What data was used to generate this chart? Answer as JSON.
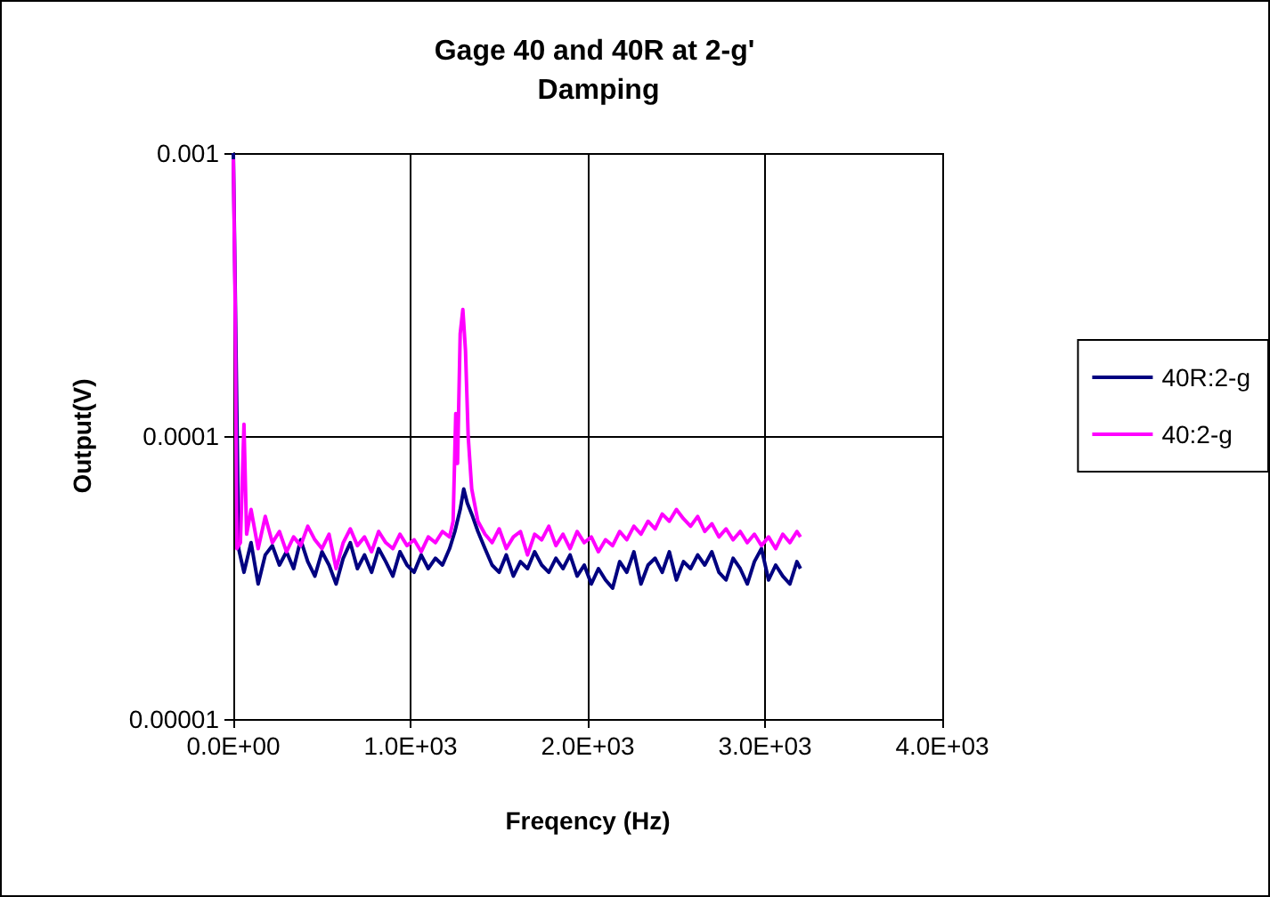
{
  "chart_data": {
    "type": "line",
    "title": "Gage 40 and 40R at 2-g' Damping",
    "xlabel": "Freqency (Hz)",
    "ylabel": "Output(V)",
    "log": "y",
    "grid": true,
    "legend": "right",
    "marker": "none",
    "line_style": "solid",
    "xlim": [
      0,
      4000
    ],
    "xticks": [
      {
        "value": 0,
        "label": "0.0E+00"
      },
      {
        "value": 1000,
        "label": "1.0E+03"
      },
      {
        "value": 2000,
        "label": "2.0E+03"
      },
      {
        "value": 3000,
        "label": "3.0E+03"
      },
      {
        "value": 4000,
        "label": "4.0E+03"
      }
    ],
    "ylim": [
      1e-05,
      0.001
    ],
    "yticks": [
      {
        "value": 1e-05,
        "label": "0.00001"
      },
      {
        "value": 0.0001,
        "label": "0.0001"
      },
      {
        "value": 0.001,
        "label": "0.001"
      }
    ],
    "series": [
      {
        "name": "40R:2-g",
        "color": "#000080",
        "x": [
          0,
          15,
          30,
          60,
          100,
          140,
          180,
          220,
          260,
          300,
          340,
          380,
          420,
          460,
          500,
          540,
          580,
          620,
          660,
          700,
          740,
          780,
          820,
          860,
          900,
          940,
          980,
          1020,
          1060,
          1100,
          1140,
          1180,
          1220,
          1250,
          1280,
          1300,
          1320,
          1350,
          1380,
          1420,
          1460,
          1500,
          1540,
          1580,
          1620,
          1660,
          1700,
          1740,
          1780,
          1820,
          1860,
          1900,
          1940,
          1980,
          2020,
          2060,
          2100,
          2140,
          2180,
          2220,
          2260,
          2300,
          2340,
          2380,
          2420,
          2460,
          2500,
          2540,
          2580,
          2620,
          2660,
          2700,
          2740,
          2780,
          2820,
          2860,
          2900,
          2940,
          2980,
          3020,
          3060,
          3100,
          3140,
          3180,
          3200
        ],
        "values": [
          0.001,
          0.0002,
          4e-05,
          3.3e-05,
          4.2e-05,
          3e-05,
          3.8e-05,
          4.1e-05,
          3.5e-05,
          3.9e-05,
          3.4e-05,
          4.3e-05,
          3.6e-05,
          3.2e-05,
          3.9e-05,
          3.5e-05,
          3e-05,
          3.7e-05,
          4.2e-05,
          3.4e-05,
          3.8e-05,
          3.3e-05,
          4e-05,
          3.6e-05,
          3.2e-05,
          3.9e-05,
          3.5e-05,
          3.3e-05,
          3.8e-05,
          3.4e-05,
          3.7e-05,
          3.5e-05,
          4e-05,
          4.6e-05,
          5.5e-05,
          6.5e-05,
          5.8e-05,
          5.2e-05,
          4.6e-05,
          4e-05,
          3.5e-05,
          3.3e-05,
          3.8e-05,
          3.2e-05,
          3.6e-05,
          3.4e-05,
          3.9e-05,
          3.5e-05,
          3.3e-05,
          3.7e-05,
          3.4e-05,
          3.8e-05,
          3.2e-05,
          3.5e-05,
          3e-05,
          3.4e-05,
          3.1e-05,
          2.9e-05,
          3.6e-05,
          3.3e-05,
          3.9e-05,
          3e-05,
          3.5e-05,
          3.7e-05,
          3.3e-05,
          3.9e-05,
          3.1e-05,
          3.6e-05,
          3.4e-05,
          3.8e-05,
          3.5e-05,
          3.9e-05,
          3.3e-05,
          3.1e-05,
          3.7e-05,
          3.4e-05,
          3e-05,
          3.6e-05,
          4e-05,
          3.1e-05,
          3.5e-05,
          3.2e-05,
          3e-05,
          3.6e-05,
          3.4e-05
        ]
      },
      {
        "name": "40:2-g",
        "color": "#ff00ff",
        "x": [
          0,
          10,
          20,
          40,
          60,
          75,
          100,
          140,
          180,
          220,
          260,
          300,
          340,
          380,
          420,
          460,
          500,
          540,
          580,
          620,
          660,
          700,
          740,
          780,
          820,
          860,
          900,
          940,
          980,
          1020,
          1060,
          1100,
          1140,
          1180,
          1220,
          1240,
          1255,
          1265,
          1280,
          1295,
          1310,
          1325,
          1345,
          1380,
          1420,
          1460,
          1500,
          1540,
          1580,
          1620,
          1660,
          1700,
          1740,
          1780,
          1820,
          1860,
          1900,
          1940,
          1980,
          2020,
          2060,
          2100,
          2140,
          2180,
          2220,
          2260,
          2300,
          2340,
          2380,
          2420,
          2460,
          2500,
          2540,
          2580,
          2620,
          2660,
          2700,
          2740,
          2780,
          2820,
          2860,
          2900,
          2940,
          2980,
          3020,
          3060,
          3100,
          3140,
          3180,
          3200
        ],
        "values": [
          0.00095,
          0.0003,
          4e-05,
          4.2e-05,
          0.00011,
          4.5e-05,
          5.5e-05,
          4e-05,
          5.2e-05,
          4.2e-05,
          4.6e-05,
          3.9e-05,
          4.4e-05,
          4.1e-05,
          4.8e-05,
          4.3e-05,
          4e-05,
          4.5e-05,
          3.4e-05,
          4.2e-05,
          4.7e-05,
          4.1e-05,
          4.4e-05,
          3.9e-05,
          4.6e-05,
          4.2e-05,
          4e-05,
          4.5e-05,
          4.1e-05,
          4.3e-05,
          3.9e-05,
          4.4e-05,
          4.2e-05,
          4.6e-05,
          4.4e-05,
          5e-05,
          0.00012,
          8e-05,
          0.00023,
          0.00028,
          0.0002,
          0.0001,
          6.5e-05,
          5e-05,
          4.5e-05,
          4.2e-05,
          4.7e-05,
          4e-05,
          4.4e-05,
          4.6e-05,
          3.8e-05,
          4.5e-05,
          4.3e-05,
          4.8e-05,
          4.1e-05,
          4.5e-05,
          4e-05,
          4.6e-05,
          4.2e-05,
          4.4e-05,
          3.9e-05,
          4.3e-05,
          4.1e-05,
          4.6e-05,
          4.3e-05,
          4.8e-05,
          4.5e-05,
          5e-05,
          4.7e-05,
          5.3e-05,
          5e-05,
          5.5e-05,
          5.1e-05,
          4.8e-05,
          5.2e-05,
          4.6e-05,
          4.9e-05,
          4.4e-05,
          4.7e-05,
          4.3e-05,
          4.6e-05,
          4.2e-05,
          4.5e-05,
          4.1e-05,
          4.4e-05,
          4e-05,
          4.5e-05,
          4.2e-05,
          4.6e-05,
          4.4e-05
        ]
      }
    ]
  }
}
